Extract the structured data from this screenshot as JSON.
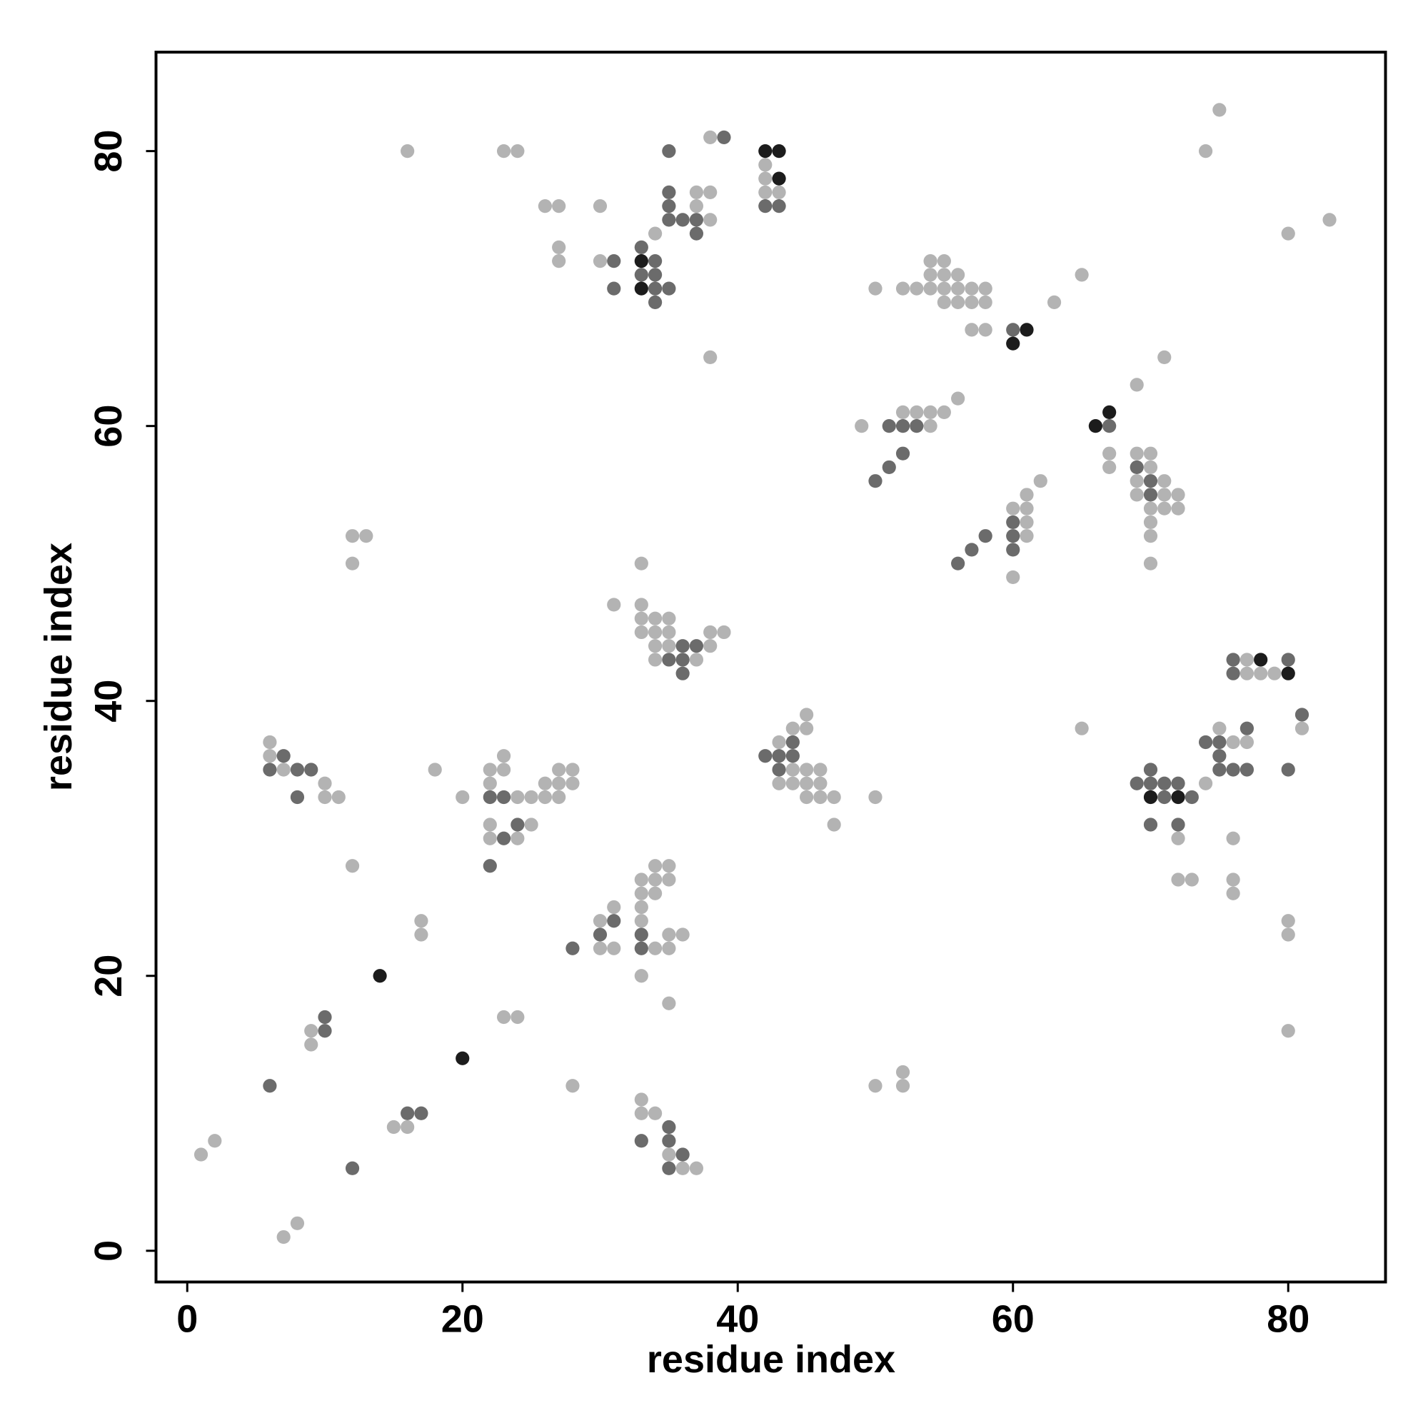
{
  "chart_data": {
    "type": "scatter",
    "x_label": "residue index",
    "y_label": "residue index",
    "xlim": [
      -2.27,
      87.07
    ],
    "ylim": [
      -2.27,
      87.2
    ],
    "xticks": [
      0,
      20,
      40,
      60,
      80
    ],
    "yticks": [
      0,
      20,
      40,
      60,
      80
    ],
    "series": [
      {
        "color": "#b3b3b3",
        "x": [
          75,
          38,
          16,
          23,
          24,
          74,
          42,
          42,
          37,
          38,
          42,
          43,
          26,
          27,
          30,
          37,
          38,
          83,
          34,
          80,
          27,
          27,
          30,
          54,
          55,
          54,
          55,
          56,
          65,
          50,
          52,
          53,
          54,
          55,
          56,
          57,
          58,
          55,
          56,
          57,
          58,
          63,
          57,
          58,
          38,
          71,
          69,
          56,
          52,
          53,
          54,
          55,
          49,
          54,
          67,
          69,
          70,
          67,
          70,
          62,
          69,
          71,
          61,
          69,
          71,
          72,
          60,
          61,
          70,
          71,
          72,
          61,
          70,
          12,
          13,
          61,
          70,
          12,
          33,
          70,
          60,
          31,
          33,
          33,
          34,
          35,
          33,
          34,
          35,
          38,
          39,
          34,
          35,
          38,
          34,
          37,
          77,
          77,
          78,
          79,
          45,
          44,
          45,
          65,
          75,
          81,
          6,
          43,
          76,
          77,
          6,
          23,
          7,
          18,
          22,
          23,
          27,
          28,
          44,
          45,
          46,
          10,
          22,
          26,
          27,
          28,
          43,
          44,
          45,
          46,
          74,
          10,
          11,
          20,
          24,
          25,
          26,
          27,
          45,
          46,
          47,
          50,
          22,
          25,
          47,
          22,
          24,
          72,
          76,
          12,
          34,
          35,
          33,
          34,
          35,
          72,
          73,
          76,
          33,
          34,
          76,
          31,
          33,
          17,
          30,
          33,
          80,
          17,
          35,
          36,
          80,
          30,
          31,
          34,
          35,
          33,
          35,
          23,
          24,
          9,
          80,
          9,
          52,
          28,
          50,
          52,
          33,
          33,
          34,
          15,
          16,
          2,
          1,
          35,
          36,
          37,
          8,
          7
        ],
        "values": [
          83,
          81,
          80,
          80,
          80,
          80,
          79,
          78,
          77,
          77,
          77,
          77,
          76,
          76,
          76,
          76,
          75,
          75,
          74,
          74,
          73,
          72,
          72,
          72,
          72,
          71,
          71,
          71,
          71,
          70,
          70,
          70,
          70,
          70,
          70,
          70,
          70,
          69,
          69,
          69,
          69,
          69,
          67,
          67,
          65,
          65,
          63,
          62,
          61,
          61,
          61,
          61,
          60,
          60,
          58,
          58,
          58,
          57,
          57,
          56,
          56,
          56,
          55,
          55,
          55,
          55,
          54,
          54,
          54,
          54,
          54,
          53,
          53,
          52,
          52,
          52,
          52,
          50,
          50,
          50,
          49,
          47,
          47,
          46,
          46,
          46,
          45,
          45,
          45,
          45,
          45,
          44,
          44,
          44,
          43,
          43,
          43,
          42,
          42,
          42,
          39,
          38,
          38,
          38,
          38,
          38,
          37,
          37,
          37,
          37,
          36,
          36,
          35,
          35,
          35,
          35,
          35,
          35,
          35,
          35,
          35,
          34,
          34,
          34,
          34,
          34,
          34,
          34,
          34,
          34,
          34,
          33,
          33,
          33,
          33,
          33,
          33,
          33,
          33,
          33,
          33,
          33,
          31,
          31,
          31,
          30,
          30,
          30,
          30,
          28,
          28,
          28,
          27,
          27,
          27,
          27,
          27,
          27,
          26,
          26,
          26,
          25,
          25,
          24,
          24,
          24,
          24,
          23,
          23,
          23,
          23,
          22,
          22,
          22,
          22,
          20,
          18,
          17,
          17,
          16,
          16,
          15,
          13,
          12,
          12,
          12,
          11,
          10,
          10,
          9,
          9,
          8,
          7,
          7,
          6,
          6,
          2,
          1
        ]
      },
      {
        "color": "#6b6b6b",
        "x": [
          39,
          35,
          35,
          35,
          42,
          43,
          35,
          36,
          37,
          37,
          33,
          31,
          34,
          33,
          34,
          31,
          34,
          35,
          34,
          60,
          51,
          52,
          53,
          67,
          52,
          51,
          69,
          50,
          70,
          70,
          60,
          58,
          60,
          57,
          60,
          56,
          36,
          37,
          35,
          36,
          76,
          80,
          36,
          76,
          81,
          77,
          44,
          74,
          75,
          7,
          42,
          43,
          44,
          75,
          6,
          8,
          9,
          43,
          70,
          75,
          76,
          77,
          80,
          69,
          70,
          71,
          72,
          8,
          22,
          23,
          71,
          73,
          24,
          70,
          72,
          23,
          22,
          31,
          30,
          33,
          28,
          33,
          10,
          10,
          6,
          16,
          17,
          35,
          33,
          35,
          36,
          12,
          35
        ],
        "values": [
          81,
          80,
          77,
          76,
          76,
          76,
          75,
          75,
          75,
          74,
          73,
          72,
          72,
          71,
          71,
          70,
          70,
          70,
          69,
          67,
          60,
          60,
          60,
          60,
          58,
          57,
          57,
          56,
          56,
          55,
          53,
          52,
          52,
          51,
          51,
          50,
          44,
          44,
          43,
          43,
          43,
          43,
          42,
          42,
          39,
          38,
          37,
          37,
          37,
          36,
          36,
          36,
          36,
          36,
          35,
          35,
          35,
          35,
          35,
          35,
          35,
          35,
          35,
          34,
          34,
          34,
          34,
          33,
          33,
          33,
          33,
          33,
          31,
          31,
          31,
          30,
          28,
          24,
          23,
          23,
          22,
          22,
          17,
          16,
          12,
          10,
          10,
          9,
          8,
          8,
          7,
          6,
          6
        ]
      },
      {
        "color": "#1c1c1c",
        "x": [
          42,
          43,
          43,
          33,
          33,
          61,
          60,
          67,
          66,
          78,
          80,
          70,
          72,
          14,
          20
        ],
        "values": [
          80,
          80,
          78,
          72,
          70,
          67,
          66,
          61,
          60,
          43,
          42,
          33,
          33,
          20,
          14
        ]
      }
    ]
  }
}
